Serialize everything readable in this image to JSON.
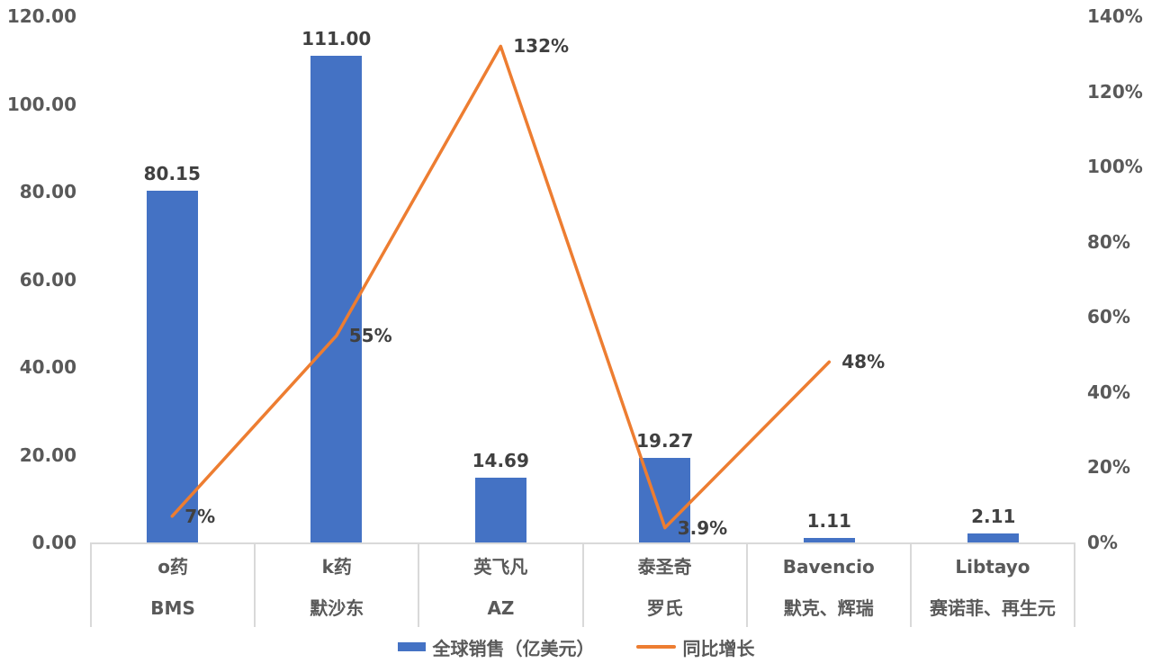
{
  "chart_data": {
    "type": "combo-bar-line",
    "title": "",
    "categories": [
      {
        "drug": "o药",
        "company": "BMS"
      },
      {
        "drug": "k药",
        "company": "默沙东"
      },
      {
        "drug": "英飞凡",
        "company": "AZ"
      },
      {
        "drug": "泰圣奇",
        "company": "罗氏"
      },
      {
        "drug": "Bavencio",
        "company": "默克、辉瑞"
      },
      {
        "drug": "Libtayo",
        "company": "赛诺菲、再生元"
      }
    ],
    "series": [
      {
        "name": "全球销售（亿美元）",
        "type": "bar",
        "axis": "left",
        "color": "#4472C4",
        "values": [
          80.15,
          111.0,
          14.69,
          19.27,
          1.11,
          2.11
        ],
        "labels": [
          "80.15",
          "111.00",
          "14.69",
          "19.27",
          "1.11",
          "2.11"
        ]
      },
      {
        "name": "同比增长",
        "type": "line",
        "axis": "right",
        "color": "#ED7D31",
        "values": [
          7,
          55,
          132,
          3.9,
          48
        ],
        "labels": [
          "7%",
          "55%",
          "132%",
          "3.9%",
          "48%"
        ]
      }
    ],
    "left_axis": {
      "min": 0,
      "max": 120,
      "ticks": [
        "0.00",
        "20.00",
        "40.00",
        "60.00",
        "80.00",
        "100.00",
        "120.00"
      ]
    },
    "right_axis": {
      "min": 0,
      "max": 140,
      "ticks": [
        "0%",
        "20%",
        "40%",
        "60%",
        "80%",
        "100%",
        "120%",
        "140%"
      ]
    },
    "legend_position": "bottom",
    "grid": false,
    "colors": {
      "bar": "#4472C4",
      "line": "#ED7D31",
      "axis_text": "#595959",
      "data_label_text": "#404040",
      "axis_line": "#D9D9D9"
    }
  }
}
